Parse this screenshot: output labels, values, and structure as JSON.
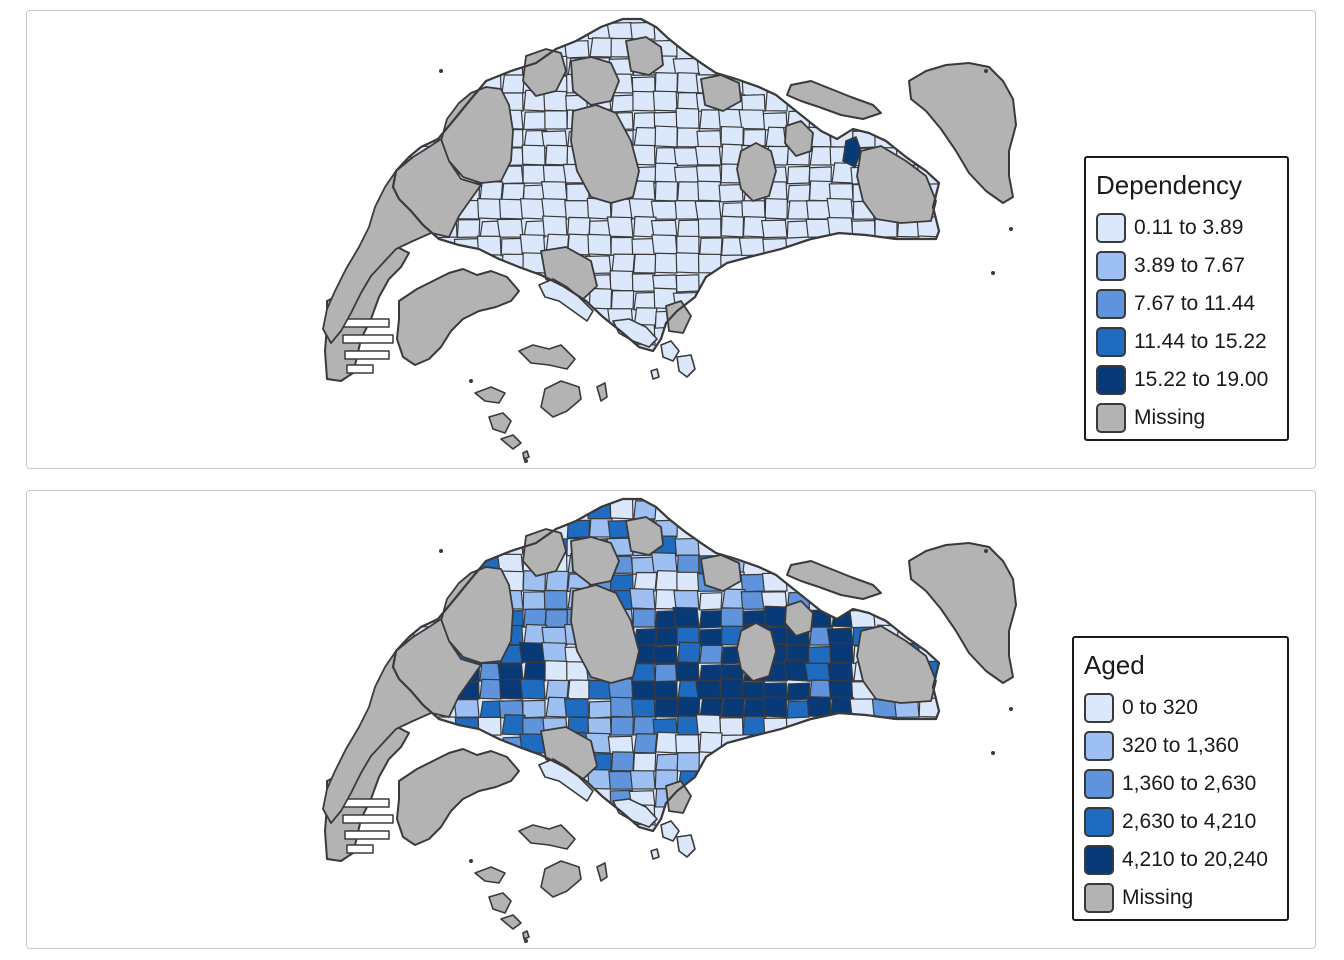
{
  "maps": [
    {
      "legend": {
        "title": "Dependency",
        "items": [
          {
            "label": "0.11 to 3.89",
            "color": "#dbe8fb"
          },
          {
            "label": "3.89 to 7.67",
            "color": "#9dbff2"
          },
          {
            "label": "7.67 to 11.44",
            "color": "#5f93db"
          },
          {
            "label": "11.44 to 15.22",
            "color": "#1e6bbf"
          },
          {
            "label": "15.22 to 19.00",
            "color": "#083a78"
          },
          {
            "label": "Missing",
            "color": "#b3b3b3"
          }
        ]
      },
      "dominant_class": 0
    },
    {
      "legend": {
        "title": "Aged",
        "items": [
          {
            "label": "0 to 320",
            "color": "#dbe8fb"
          },
          {
            "label": "320 to 1,360",
            "color": "#9dbff2"
          },
          {
            "label": "1,360 to 2,630",
            "color": "#5f93db"
          },
          {
            "label": "2,630 to 4,210",
            "color": "#1e6bbf"
          },
          {
            "label": "4,210 to 20,240",
            "color": "#083a78"
          },
          {
            "label": "Missing",
            "color": "#b3b3b3"
          }
        ]
      },
      "dominant_class": 4
    }
  ],
  "colors": {
    "border": "#3a3a3a",
    "missing": "#b3b3b3",
    "panel_border": "#c8c8c8"
  }
}
